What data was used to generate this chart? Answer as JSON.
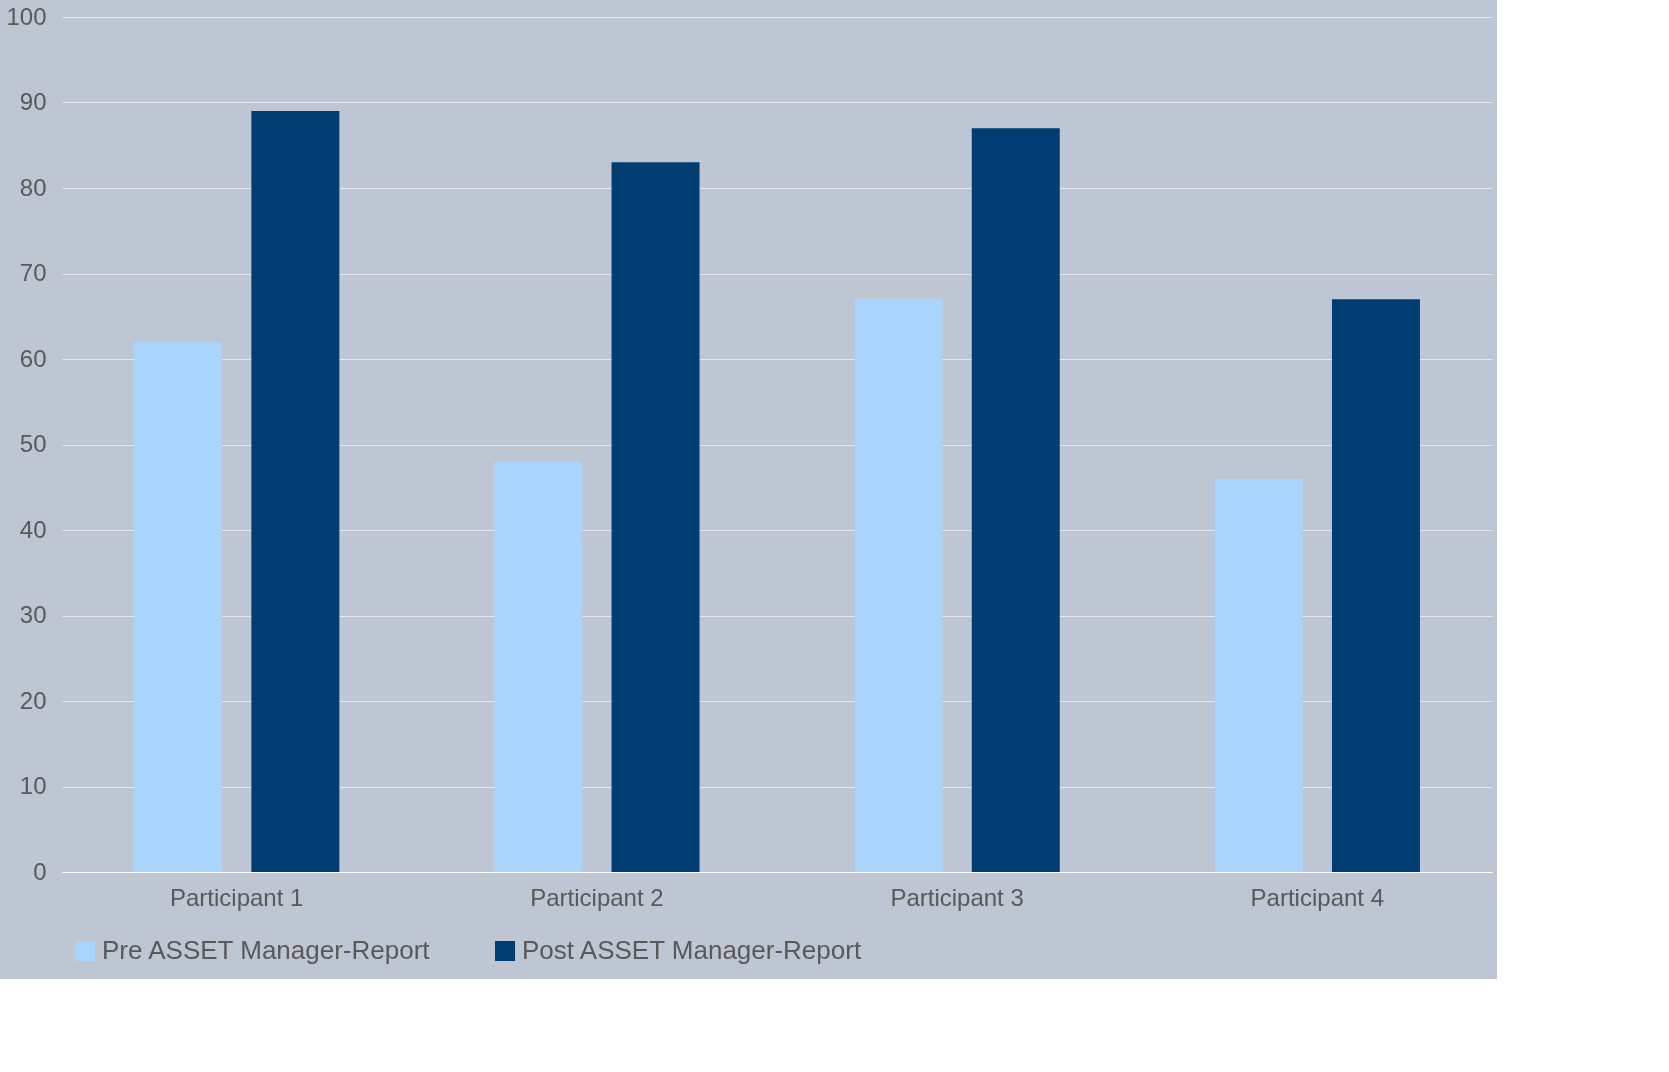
{
  "chart_data": {
    "type": "bar",
    "categories": [
      "Participant 1",
      "Participant 2",
      "Participant 3",
      "Participant 4"
    ],
    "series": [
      {
        "name": "Pre ASSET Manager-Report",
        "color": "#a9d5fd",
        "values": [
          62,
          48,
          67,
          46
        ]
      },
      {
        "name": "Post ASSET Manager-Report",
        "color": "#003d73",
        "values": [
          89,
          83,
          87,
          67
        ]
      }
    ],
    "ylim": [
      0,
      100
    ],
    "yticks": [
      0,
      10,
      20,
      30,
      40,
      50,
      60,
      70,
      80,
      90,
      100
    ],
    "grid": "y",
    "legend": "bottom"
  }
}
